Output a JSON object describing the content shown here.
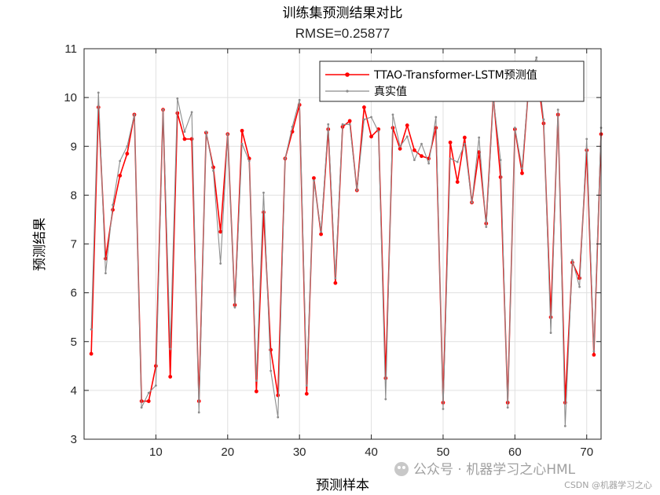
{
  "chart_data": {
    "type": "line",
    "title": "训练集预测结果对比",
    "subtitle": "RMSE=0.25877",
    "xlabel": "预测样本",
    "ylabel": "预测结果",
    "xlim": [
      0,
      72
    ],
    "ylim": [
      3,
      11
    ],
    "xticks": [
      10,
      20,
      30,
      40,
      50,
      60,
      70
    ],
    "yticks": [
      3,
      4,
      5,
      6,
      7,
      8,
      9,
      10,
      11
    ],
    "grid": true,
    "legend_position": "top-right",
    "series": [
      {
        "name": "TTAO-Transformer-LSTM预测值",
        "color": "#ff0000",
        "marker": "dot",
        "values": [
          4.75,
          9.8,
          6.7,
          7.7,
          8.4,
          8.85,
          9.65,
          3.78,
          3.78,
          4.5,
          9.75,
          4.28,
          9.68,
          9.15,
          9.15,
          3.78,
          9.28,
          8.57,
          7.25,
          9.25,
          5.75,
          9.32,
          8.75,
          3.98,
          7.65,
          4.83,
          3.9,
          8.75,
          9.3,
          9.85,
          3.93,
          8.35,
          7.2,
          9.35,
          6.2,
          9.4,
          9.52,
          8.1,
          9.8,
          9.2,
          9.35,
          4.25,
          9.38,
          8.95,
          9.43,
          8.92,
          8.8,
          8.75,
          9.38,
          3.75,
          9.08,
          8.27,
          9.18,
          7.85,
          8.88,
          7.42,
          10.02,
          8.37,
          3.75,
          9.35,
          8.45,
          10.4,
          10.6,
          9.47,
          5.5,
          9.65,
          3.75,
          6.62,
          6.3,
          8.92,
          4.73,
          9.25
        ]
      },
      {
        "name": "真实值",
        "color": "#8c8c8c",
        "marker": "small-dot",
        "values": [
          5.25,
          10.1,
          6.4,
          7.8,
          8.7,
          9.0,
          9.65,
          3.65,
          3.95,
          4.1,
          9.75,
          4.85,
          9.98,
          9.3,
          9.7,
          3.55,
          9.3,
          8.5,
          6.6,
          9.25,
          5.7,
          9.05,
          8.7,
          4.2,
          8.05,
          4.4,
          3.45,
          8.75,
          9.4,
          9.95,
          4.1,
          8.3,
          7.25,
          9.45,
          6.3,
          9.45,
          9.45,
          8.1,
          9.55,
          9.6,
          9.3,
          3.82,
          9.65,
          9.0,
          9.2,
          8.72,
          9.05,
          8.65,
          9.6,
          3.62,
          8.75,
          8.68,
          9.05,
          7.85,
          9.18,
          7.35,
          9.98,
          8.72,
          3.65,
          9.38,
          8.55,
          10.4,
          10.82,
          9.55,
          5.18,
          9.75,
          3.27,
          6.67,
          6.12,
          9.15,
          4.8,
          9.38
        ]
      }
    ]
  },
  "watermark": {
    "main": "公众号 · 机器学习之心HML",
    "csdn": "CSDN @机器学习之心"
  }
}
